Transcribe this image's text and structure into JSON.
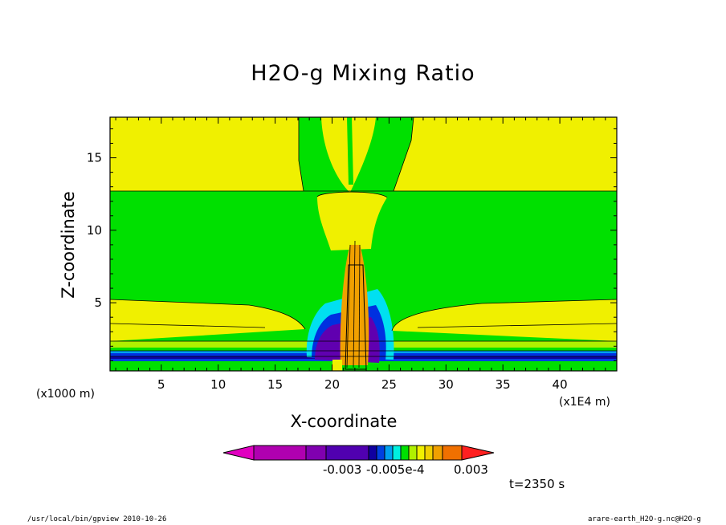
{
  "chart_data": {
    "type": "heatmap",
    "title": "H2O-g Mixing Ratio",
    "xlabel": "X-coordinate",
    "ylabel": "Z-coordinate",
    "x_unit_left": "(x1000 m)",
    "x_unit_right": "(x1E4 m)",
    "xlim": [
      0.5,
      45
    ],
    "ylim": [
      0.3,
      17.8
    ],
    "x_ticks": [
      "5",
      "10",
      "15",
      "20",
      "25",
      "30",
      "35",
      "40"
    ],
    "y_ticks": [
      "5",
      "10",
      "15"
    ],
    "colorbar": {
      "colors": [
        "#e000c0",
        "#b000b0",
        "#8000b0",
        "#5000b0",
        "#1000a0",
        "#0040e0",
        "#00a0f0",
        "#00f0e0",
        "#00e000",
        "#b0f000",
        "#f0f000",
        "#f0d000",
        "#f0a000",
        "#f07000",
        "#ff2020"
      ],
      "labels": [
        "-0.003",
        "-0.005e-4",
        "0.003"
      ]
    },
    "annotation": "t=2350 s"
  },
  "footer": {
    "left": "/usr/local/bin/gpview   2010-10-26",
    "right": "arare-earth_H2O-g.nc@H2O-g"
  },
  "colors": {
    "green": "#00e000",
    "yellow": "#f0f000",
    "cyan": "#00e0f0",
    "blue": "#0030e0",
    "navy": "#1000a0",
    "purple": "#6000b0",
    "orange": "#f0a000"
  }
}
